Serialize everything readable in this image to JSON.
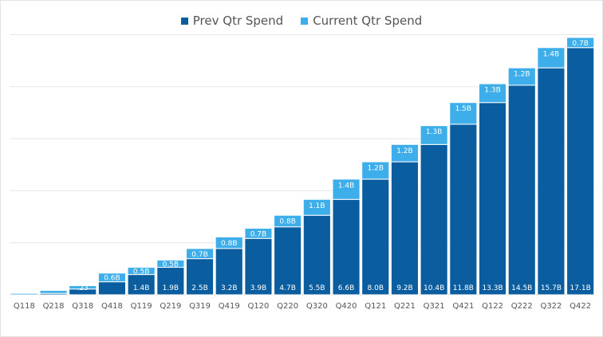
{
  "chart_data": {
    "type": "bar",
    "stacked": true,
    "categories": [
      "Q118",
      "Q218",
      "Q318",
      "Q418",
      "Q119",
      "Q219",
      "Q319",
      "Q419",
      "Q120",
      "Q220",
      "Q320",
      "Q420",
      "Q121",
      "Q221",
      "Q321",
      "Q421",
      "Q122",
      "Q222",
      "Q322",
      "Q422"
    ],
    "series": [
      {
        "name": "Prev Qtr Spend",
        "color": "#0a5d9e",
        "values": [
          0.0,
          0.1,
          0.4,
          0.9,
          1.4,
          1.9,
          2.5,
          3.2,
          3.9,
          4.7,
          5.5,
          6.6,
          8.0,
          9.2,
          10.4,
          11.8,
          13.3,
          14.5,
          15.7,
          17.1
        ],
        "labels": [
          "",
          "",
          "",
          "",
          "1.4B",
          "1.9B",
          "2.5B",
          "3.2B",
          "3.9B",
          "4.7B",
          "5.5B",
          "6.6B",
          "8.0B",
          "9.2B",
          "10.4B",
          "11.8B",
          "13.3B",
          "14.5B",
          "15.7B",
          "17.1B"
        ]
      },
      {
        "name": "Current Qtr Spend",
        "color": "#3daee9",
        "values": [
          0.1,
          0.2,
          0.23,
          0.6,
          0.5,
          0.5,
          0.7,
          0.8,
          0.7,
          0.8,
          1.1,
          1.4,
          1.2,
          1.2,
          1.3,
          1.5,
          1.3,
          1.2,
          1.4,
          0.7
        ],
        "labels": [
          "",
          "",
          ".23",
          "0.6B",
          "0.5B",
          "0.5B",
          "0.7B",
          "0.8B",
          "0.7B",
          "0.8B",
          "1.1B",
          "1.4B",
          "1.2B",
          "1.2B",
          "1.3B",
          "1.5B",
          "1.3B",
          "1.2B",
          "1.4B",
          "0.7B"
        ]
      }
    ],
    "ylim": [
      0,
      18.3
    ],
    "gridlines": [
      0,
      3.6,
      7.2,
      10.8,
      14.4,
      18.0
    ],
    "grid": true,
    "legend_position": "top-center",
    "title": "",
    "xlabel": "",
    "ylabel": ""
  }
}
